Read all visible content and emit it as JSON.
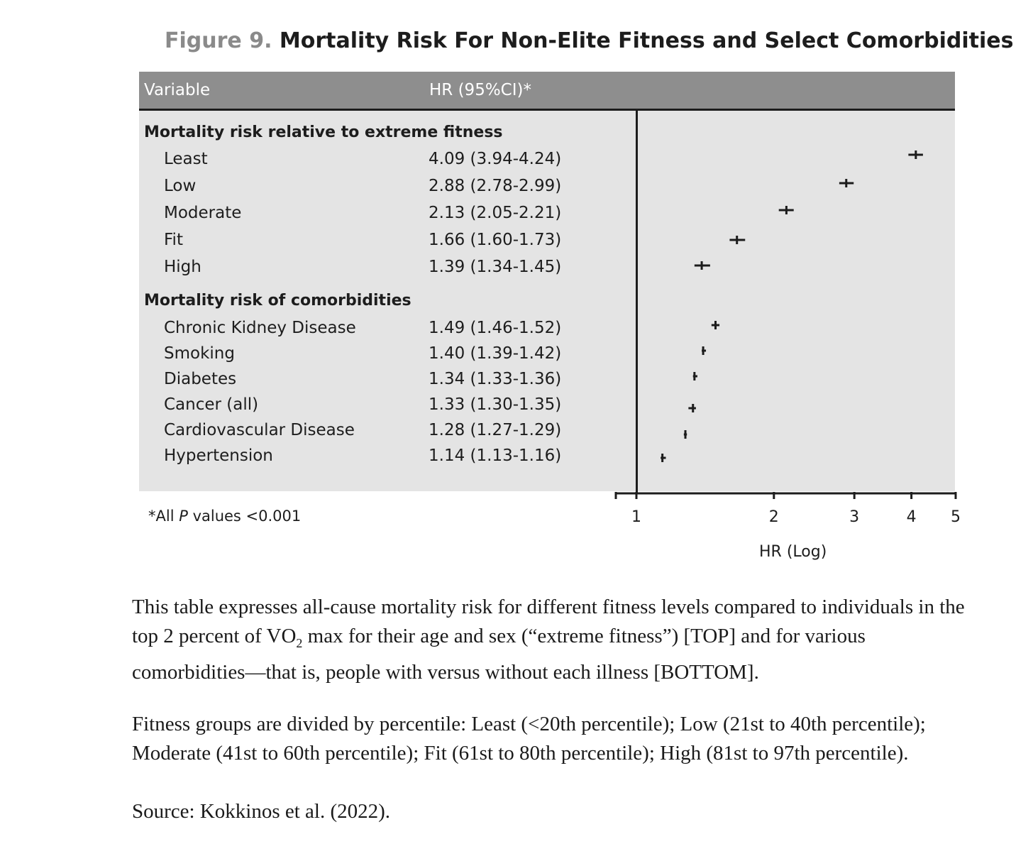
{
  "figure": {
    "label": "Figure 9.",
    "title": "Mortality Risk For Non-Elite Fitness and Select Comorbidities"
  },
  "table": {
    "col_variable": "Variable",
    "col_hr": "HR (95%CI)*",
    "sections": [
      {
        "heading": "Mortality risk relative to extreme fitness",
        "rows": [
          {
            "label": "Least",
            "text": "4.09 (3.94-4.24)"
          },
          {
            "label": "Low",
            "text": "2.88 (2.78-2.99)"
          },
          {
            "label": "Moderate",
            "text": "2.13 (2.05-2.21)"
          },
          {
            "label": "Fit",
            "text": "1.66 (1.60-1.73)"
          },
          {
            "label": "High",
            "text": "1.39 (1.34-1.45)"
          }
        ]
      },
      {
        "heading": "Mortality risk of comorbidities",
        "rows": [
          {
            "label": "Chronic Kidney Disease",
            "text": "1.49 (1.46-1.52)"
          },
          {
            "label": "Smoking",
            "text": "1.40 (1.39-1.42)"
          },
          {
            "label": "Diabetes",
            "text": "1.34 (1.33-1.36)"
          },
          {
            "label": "Cancer (all)",
            "text": "1.33 (1.30-1.35)"
          },
          {
            "label": "Cardiovascular Disease",
            "text": "1.28 (1.27-1.29)"
          },
          {
            "label": "Hypertension",
            "text": "1.14 (1.13-1.16)"
          }
        ]
      }
    ],
    "footnote_prefix": "*All ",
    "footnote_p": "P",
    "footnote_suffix": " values <0.001"
  },
  "chart_data": {
    "type": "forest",
    "xscale": "log",
    "xlabel": "HR (Log)",
    "xticks": [
      1,
      2,
      3,
      4,
      5
    ],
    "xlim": [
      1,
      5
    ],
    "reference_line": 1,
    "points": [
      {
        "label": "Least",
        "hr": 4.09,
        "lo": 3.94,
        "hi": 4.24
      },
      {
        "label": "Low",
        "hr": 2.88,
        "lo": 2.78,
        "hi": 2.99
      },
      {
        "label": "Moderate",
        "hr": 2.13,
        "lo": 2.05,
        "hi": 2.21
      },
      {
        "label": "Fit",
        "hr": 1.66,
        "lo": 1.6,
        "hi": 1.73
      },
      {
        "label": "High",
        "hr": 1.39,
        "lo": 1.34,
        "hi": 1.45
      },
      {
        "label": "Chronic Kidney Disease",
        "hr": 1.49,
        "lo": 1.46,
        "hi": 1.52
      },
      {
        "label": "Smoking",
        "hr": 1.4,
        "lo": 1.39,
        "hi": 1.42
      },
      {
        "label": "Diabetes",
        "hr": 1.34,
        "lo": 1.33,
        "hi": 1.36
      },
      {
        "label": "Cancer (all)",
        "hr": 1.33,
        "lo": 1.3,
        "hi": 1.35
      },
      {
        "label": "Cardiovascular Disease",
        "hr": 1.28,
        "lo": 1.27,
        "hi": 1.29
      },
      {
        "label": "Hypertension",
        "hr": 1.14,
        "lo": 1.13,
        "hi": 1.16
      }
    ]
  },
  "caption": {
    "p1_a": "This table expresses all-cause mortality risk for different fitness levels compared to individuals in the top 2 percent of VO",
    "p1_sub": "2",
    "p1_b": " max for their age and sex (“extreme fitness”) [TOP] and for various comorbidities—that is, people with versus without each illness [BOTTOM].",
    "p2": "Fitness groups are divided by percentile: Least (<20th percentile); Low (21st to 40th percentile); Moderate (41st to 60th percentile); Fit (61st to 80th percentile); High (81st to 97th percentile).",
    "p3": "Source: Kokkinos et al. (2022)."
  }
}
